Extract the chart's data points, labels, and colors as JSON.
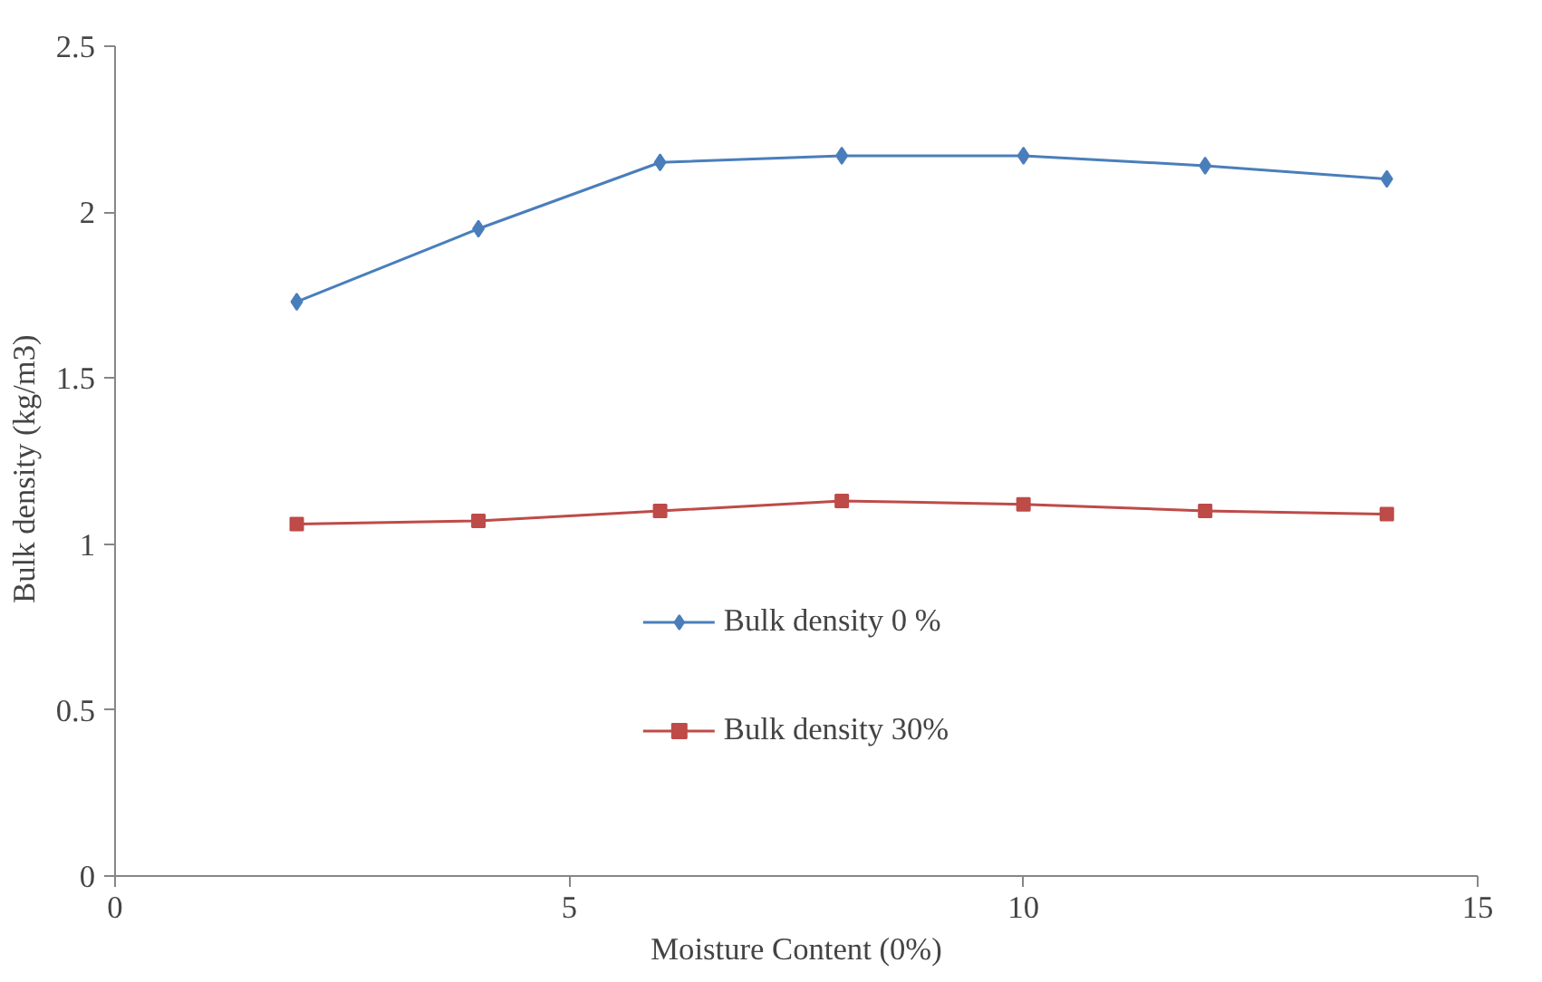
{
  "chart_data": {
    "type": "line",
    "xlabel": "Moisture Content (0%)",
    "ylabel": "Bulk density   (kg/m3)",
    "x": [
      2,
      4,
      6,
      8,
      10,
      12,
      14
    ],
    "series": [
      {
        "name": "Bulk density 0 %",
        "color": "#4a7ebb",
        "marker": "diamond",
        "values": [
          1.73,
          1.95,
          2.15,
          2.17,
          2.17,
          2.14,
          2.1
        ]
      },
      {
        "name": "Bulk density 30%",
        "color": "#be4b48",
        "marker": "square",
        "values": [
          1.06,
          1.07,
          1.1,
          1.13,
          1.12,
          1.1,
          1.09
        ]
      }
    ],
    "xlim": [
      0,
      15
    ],
    "xticks": [
      0,
      5,
      10,
      15
    ],
    "ylim": [
      0,
      2.5
    ],
    "yticks": [
      0,
      0.5,
      1,
      1.5,
      2,
      2.5
    ],
    "grid": false,
    "legend": "bottom",
    "line_style": "solid"
  }
}
